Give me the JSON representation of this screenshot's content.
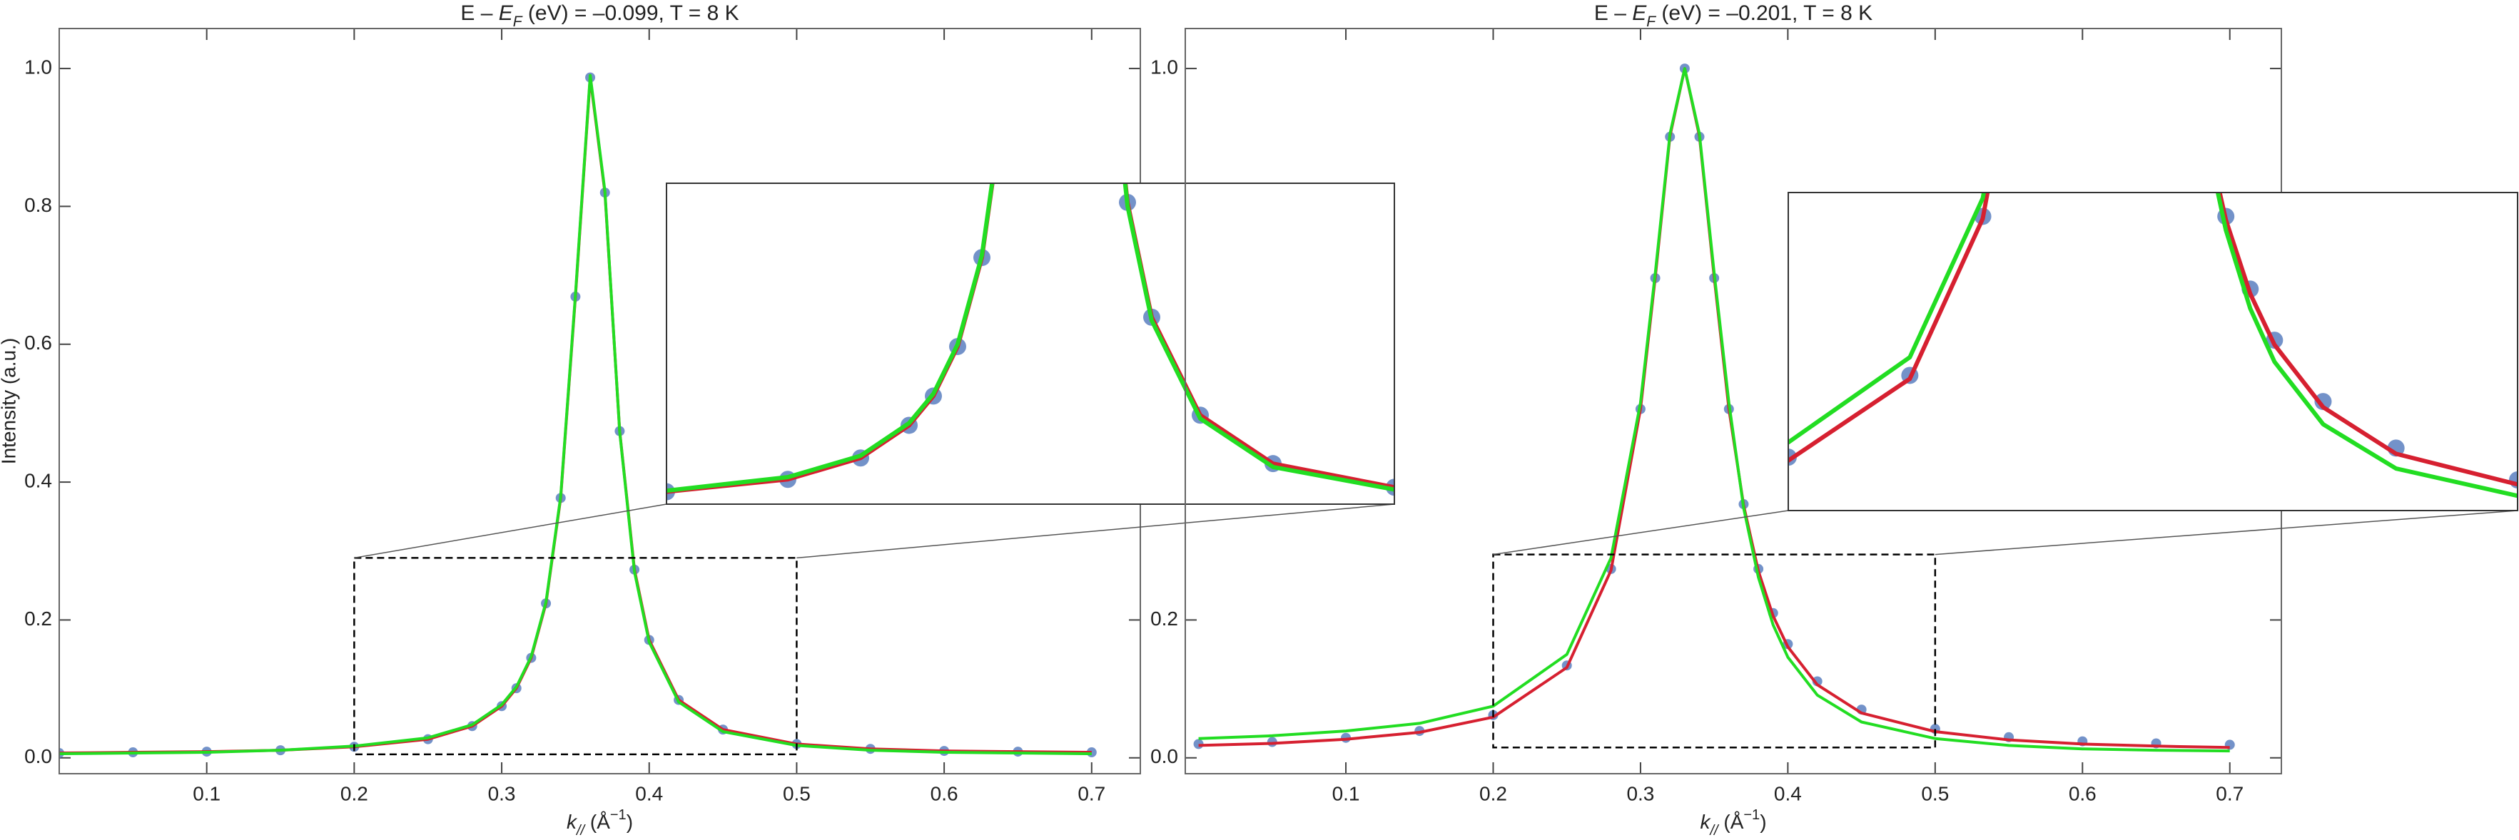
{
  "chart_data": [
    {
      "type": "scatter",
      "title": [
        "E – ",
        "E",
        "F",
        " (eV) = –0.099, T = 8 K"
      ],
      "x_label": [
        "k",
        "//",
        " (Å",
        "−1",
        ")"
      ],
      "y_label": "Intensity (a.u.)",
      "x": [
        0,
        0.05,
        0.1,
        0.15,
        0.2,
        0.25,
        0.28,
        0.3,
        0.31,
        0.32,
        0.33,
        0.34,
        0.35,
        0.36,
        0.37,
        0.38,
        0.39,
        0.4,
        0.42,
        0.45,
        0.5,
        0.55,
        0.6,
        0.65,
        0.7
      ],
      "series": [
        {
          "style": "points",
          "color": "#5b7fbf",
          "values": [
            0.007,
            0.008,
            0.009,
            0.011,
            0.016,
            0.027,
            0.046,
            0.075,
            0.101,
            0.145,
            0.224,
            0.377,
            0.669,
            0.987,
            0.82,
            0.474,
            0.273,
            0.171,
            0.084,
            0.041,
            0.02,
            0.013,
            0.01,
            0.009,
            0.008
          ]
        },
        {
          "style": "line",
          "color": "#d62030",
          "values": [
            0.007,
            0.008,
            0.009,
            0.011,
            0.016,
            0.027,
            0.046,
            0.075,
            0.101,
            0.145,
            0.224,
            0.377,
            0.669,
            0.987,
            0.82,
            0.474,
            0.273,
            0.171,
            0.084,
            0.041,
            0.02,
            0.013,
            0.01,
            0.009,
            0.008
          ]
        },
        {
          "style": "line",
          "color": "#22dd22",
          "values": [
            0.006,
            0.007,
            0.008,
            0.011,
            0.017,
            0.029,
            0.048,
            0.077,
            0.103,
            0.147,
            0.226,
            0.379,
            0.672,
            0.99,
            0.822,
            0.473,
            0.27,
            0.168,
            0.081,
            0.038,
            0.018,
            0.011,
            0.008,
            0.007,
            0.006
          ]
        }
      ],
      "xlim": [
        0,
        0.733
      ],
      "ylim": [
        -0.023,
        1.058
      ],
      "xticks": [
        0.1,
        0.2,
        0.3,
        0.4,
        0.5,
        0.6,
        0.7
      ],
      "yticks": [
        {
          "value": 0,
          "label": "0.0"
        },
        0.2,
        0.4,
        0.6,
        0.8,
        {
          "value": 1,
          "label": "1.0"
        }
      ],
      "inset": {
        "xlim": [
          0.2,
          0.5
        ],
        "ylim": [
          0.005,
          0.29
        ]
      }
    },
    {
      "type": "scatter",
      "title": [
        "E – ",
        "E",
        "F",
        " (eV) = –0.201, T = 8 K"
      ],
      "x_label": [
        "k",
        "//",
        " (Å",
        "−1",
        ")"
      ],
      "x": [
        0,
        0.05,
        0.1,
        0.15,
        0.2,
        0.25,
        0.28,
        0.3,
        0.31,
        0.32,
        0.33,
        0.34,
        0.35,
        0.36,
        0.37,
        0.38,
        0.39,
        0.4,
        0.42,
        0.45,
        0.5,
        0.55,
        0.6,
        0.65,
        0.7
      ],
      "series": [
        {
          "style": "points",
          "color": "#5b7fbf",
          "values": [
            0.02,
            0.023,
            0.029,
            0.039,
            0.062,
            0.134,
            0.274,
            0.506,
            0.696,
            0.901,
            1.0,
            0.901,
            0.696,
            0.506,
            0.368,
            0.274,
            0.21,
            0.165,
            0.111,
            0.07,
            0.042,
            0.03,
            0.024,
            0.021,
            0.019
          ]
        },
        {
          "style": "line",
          "color": "#d62030",
          "values": [
            0.018,
            0.021,
            0.027,
            0.037,
            0.059,
            0.131,
            0.272,
            0.506,
            0.697,
            0.902,
            1.0,
            0.902,
            0.697,
            0.506,
            0.366,
            0.271,
            0.206,
            0.161,
            0.106,
            0.065,
            0.038,
            0.026,
            0.02,
            0.017,
            0.015
          ]
        },
        {
          "style": "line",
          "color": "#22dd22",
          "values": [
            0.028,
            0.032,
            0.039,
            0.05,
            0.075,
            0.15,
            0.29,
            0.515,
            0.703,
            0.905,
            1.0,
            0.905,
            0.703,
            0.515,
            0.362,
            0.262,
            0.193,
            0.146,
            0.091,
            0.052,
            0.028,
            0.018,
            0.013,
            0.011,
            0.01
          ]
        }
      ],
      "xlim": [
        -0.009,
        0.735
      ],
      "ylim": [
        -0.023,
        1.058
      ],
      "xticks": [
        0.1,
        0.2,
        0.3,
        0.4,
        0.5,
        0.6,
        0.7
      ],
      "yticks": [
        {
          "value": 0,
          "label": "0.0"
        },
        0.2,
        {
          "value": 1,
          "label": "1.0"
        }
      ],
      "inset": {
        "xlim": [
          0.2,
          0.5
        ],
        "ylim": [
          0.015,
          0.295
        ]
      }
    }
  ]
}
